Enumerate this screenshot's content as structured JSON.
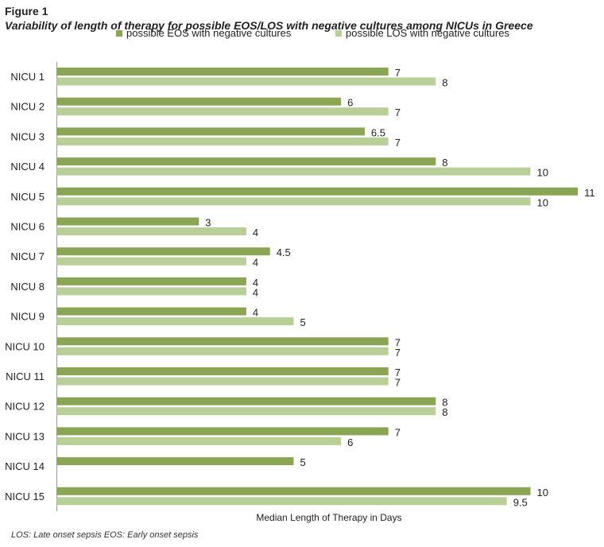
{
  "figure_label": "Figure 1",
  "footnote": "LOS: Late onset sepsis EOS: Early onset sepsis",
  "chart_data": {
    "type": "bar",
    "orientation": "horizontal",
    "title": "Variability of  length of therapy for possible EOS/LOS with negative cultures among NICUs in Greece",
    "xlabel": "Median Length of Therapy in Days",
    "ylabel": "",
    "xlim": [
      0,
      11.5
    ],
    "grid": false,
    "legend_position": "top",
    "categories": [
      "NICU 1",
      "NICU 2",
      "NICU 3",
      "NICU 4",
      "NICU 5",
      "NICU 6",
      "NICU 7",
      "NICU 8",
      "NICU 9",
      "NICU 10",
      "NICU 11",
      "NICU 12",
      "NICU 13",
      "NICU 14",
      "NICU 15"
    ],
    "series": [
      {
        "name": "possible EOS with negative cultures",
        "color": "#8aa655",
        "values": [
          7,
          6,
          6.5,
          8,
          11,
          3,
          4.5,
          4,
          4,
          7,
          7,
          8,
          7,
          5,
          10
        ],
        "labels": [
          "7",
          "6",
          "6.5",
          "8",
          "11",
          "3",
          "4.5",
          "4",
          "4",
          "7",
          "7",
          "8",
          "7",
          "5",
          "10"
        ]
      },
      {
        "name": "possible LOS with negative cultures",
        "color": "#b9cf98",
        "values": [
          8,
          7,
          7,
          10,
          10,
          4,
          4,
          4,
          5,
          7,
          7,
          8,
          6,
          null,
          9.5
        ],
        "labels": [
          "8",
          "7",
          "7",
          "10",
          "10",
          "4",
          "4",
          "4",
          "5",
          "7",
          "7",
          "8",
          "6",
          "",
          "9.5"
        ]
      }
    ]
  }
}
